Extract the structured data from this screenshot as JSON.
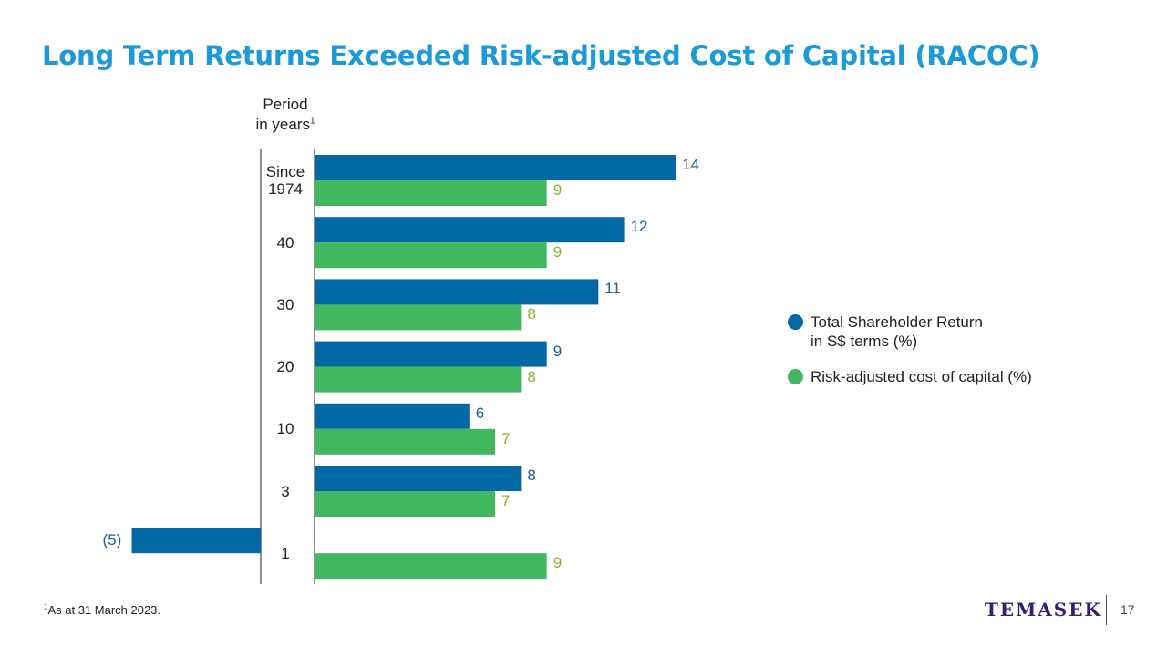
{
  "slide": {
    "title": "Long Term Returns Exceeded Risk-adjusted Cost of Capital (RACOC)",
    "axis_title_line1": "Period",
    "axis_title_line2": "in years",
    "axis_title_sup": "1",
    "footnote_sup": "1",
    "footnote_text": "As at 31 March 2023.",
    "brand": "TEMASEK",
    "page_number": "17"
  },
  "legend": [
    {
      "line1": "Total Shareholder Return",
      "line2": "in S$ terms (%)",
      "color": "#0268a6"
    },
    {
      "line1": "Risk-adjusted cost of capital (%)",
      "line2": "",
      "color": "#41b75f"
    }
  ],
  "chart_data": {
    "type": "bar",
    "orientation": "horizontal",
    "categories": [
      "Since 1974",
      "40",
      "30",
      "20",
      "10",
      "3",
      "1"
    ],
    "category_lines": [
      [
        "Since",
        "1974"
      ],
      [
        "40"
      ],
      [
        "30"
      ],
      [
        "20"
      ],
      [
        "10"
      ],
      [
        "3"
      ],
      [
        "1"
      ]
    ],
    "series": [
      {
        "name": "Total Shareholder Return in S$ terms (%)",
        "color": "#0268a6",
        "values": [
          14,
          12,
          11,
          9,
          6,
          8,
          -5
        ],
        "labels": [
          "14",
          "12",
          "11",
          "9",
          "6",
          "8",
          "(5)"
        ]
      },
      {
        "name": "Risk-adjusted cost of capital (%)",
        "color": "#41b75f",
        "values": [
          9,
          9,
          8,
          8,
          7,
          7,
          9
        ],
        "labels": [
          "9",
          "9",
          "8",
          "8",
          "7",
          "7",
          "9"
        ]
      }
    ],
    "grid": false,
    "legend_position": "right"
  }
}
